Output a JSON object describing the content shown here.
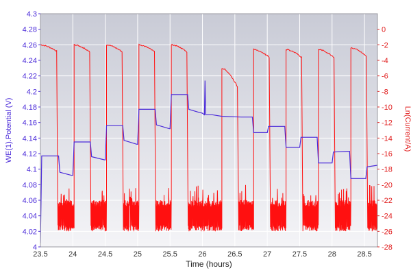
{
  "chart_data": {
    "type": "line",
    "xlabel": "Time (hours)",
    "ylabel_left": "WE(1).Potential (V)",
    "ylabel_right": "Ln(Current/A)",
    "xlim": [
      23.5,
      28.7
    ],
    "ylim_left": [
      4.0,
      4.3
    ],
    "ylim_right": [
      -28,
      2
    ],
    "x_ticks": [
      "23.5",
      "24",
      "24.5",
      "25",
      "25.5",
      "26",
      "26.5",
      "27",
      "27.5",
      "28",
      "28.5"
    ],
    "y_left_ticks": [
      "4",
      "4.02",
      "4.04",
      "4.06",
      "4.08",
      "4.1",
      "4.12",
      "4.14",
      "4.16",
      "4.18",
      "4.2",
      "4.22",
      "4.24",
      "4.26",
      "4.28",
      "4.3"
    ],
    "y_right_ticks": [
      "0",
      "-2",
      "-4",
      "-6",
      "-8",
      "-10",
      "-12",
      "-14",
      "-16",
      "-18",
      "-20",
      "-22",
      "-24",
      "-26",
      "-28"
    ],
    "grid": true,
    "colors": {
      "potential": "#4b2bd9",
      "current": "#ff1010",
      "grid": "#ffffff",
      "plot_bg_top": "#c9cbd6",
      "plot_bg_bottom": "#f4f4f7",
      "frame": "#9a9aa0"
    },
    "series": [
      {
        "axis": "left",
        "points": [
          [
            23.5,
            4.005
          ],
          [
            23.52,
            4.117
          ],
          [
            23.78,
            4.117
          ],
          [
            23.8,
            4.096
          ],
          [
            23.98,
            4.092
          ],
          [
            24.0,
            4.092
          ],
          [
            24.02,
            4.135
          ],
          [
            24.27,
            4.135
          ],
          [
            24.29,
            4.116
          ],
          [
            24.49,
            4.112
          ],
          [
            24.5,
            4.112
          ],
          [
            24.52,
            4.156
          ],
          [
            24.77,
            4.156
          ],
          [
            24.79,
            4.137
          ],
          [
            24.99,
            4.132
          ],
          [
            25.0,
            4.132
          ],
          [
            25.02,
            4.177
          ],
          [
            25.27,
            4.177
          ],
          [
            25.29,
            4.157
          ],
          [
            25.49,
            4.152
          ],
          [
            25.5,
            4.152
          ],
          [
            25.52,
            4.196
          ],
          [
            25.77,
            4.196
          ],
          [
            25.79,
            4.177
          ],
          [
            25.95,
            4.173
          ],
          [
            26.0,
            4.172
          ],
          [
            26.03,
            4.17
          ],
          [
            26.04,
            4.214
          ],
          [
            26.05,
            4.17
          ],
          [
            26.15,
            4.17
          ],
          [
            26.3,
            4.168
          ],
          [
            26.6,
            4.167
          ],
          [
            26.77,
            4.167
          ],
          [
            26.79,
            4.147
          ],
          [
            27.0,
            4.147
          ],
          [
            27.02,
            4.155
          ],
          [
            27.27,
            4.155
          ],
          [
            27.29,
            4.128
          ],
          [
            27.5,
            4.128
          ],
          [
            27.52,
            4.141
          ],
          [
            27.77,
            4.141
          ],
          [
            27.79,
            4.108
          ],
          [
            28.0,
            4.108
          ],
          [
            28.02,
            4.122
          ],
          [
            28.27,
            4.123
          ],
          [
            28.29,
            4.088
          ],
          [
            28.52,
            4.088
          ],
          [
            28.54,
            4.103
          ],
          [
            28.7,
            4.105
          ]
        ]
      },
      {
        "axis": "right",
        "segments": [
          {
            "type": "on",
            "t0": 23.5,
            "t1": 23.75,
            "top": -2.0,
            "bottom": -2.8
          },
          {
            "type": "off",
            "t0": 23.77,
            "t1": 24.02
          },
          {
            "type": "on",
            "t0": 24.02,
            "t1": 24.26,
            "top": -2.0,
            "bottom": -2.9
          },
          {
            "type": "off",
            "t0": 24.28,
            "t1": 24.52
          },
          {
            "type": "on",
            "t0": 24.52,
            "t1": 24.76,
            "top": -2.0,
            "bottom": -2.9
          },
          {
            "type": "off",
            "t0": 24.78,
            "t1": 25.02
          },
          {
            "type": "on",
            "t0": 25.02,
            "t1": 25.26,
            "top": -2.0,
            "bottom": -2.9
          },
          {
            "type": "off",
            "t0": 25.28,
            "t1": 25.52
          },
          {
            "type": "on",
            "t0": 25.52,
            "t1": 25.76,
            "top": -2.0,
            "bottom": -2.9
          },
          {
            "type": "off",
            "t0": 25.78,
            "t1": 26.3
          },
          {
            "type": "on",
            "t0": 26.3,
            "t1": 26.54,
            "top": -5.0,
            "bottom": -7.4
          },
          {
            "type": "off",
            "t0": 26.56,
            "t1": 26.79
          },
          {
            "type": "on",
            "t0": 26.79,
            "t1": 27.03,
            "top": -2.6,
            "bottom": -3.6
          },
          {
            "type": "off",
            "t0": 27.05,
            "t1": 27.29
          },
          {
            "type": "on",
            "t0": 27.29,
            "t1": 27.53,
            "top": -2.6,
            "bottom": -3.6
          },
          {
            "type": "off",
            "t0": 27.55,
            "t1": 27.79
          },
          {
            "type": "on",
            "t0": 27.79,
            "t1": 28.03,
            "top": -2.6,
            "bottom": -3.6
          },
          {
            "type": "off",
            "t0": 28.05,
            "t1": 28.29
          },
          {
            "type": "on",
            "t0": 28.29,
            "t1": 28.53,
            "top": -2.4,
            "bottom": -3.5
          },
          {
            "type": "off",
            "t0": 28.55,
            "t1": 28.7
          }
        ],
        "noise_band": [
          -26.0,
          -22.0
        ],
        "noise_spike_max": -20.0
      }
    ]
  }
}
